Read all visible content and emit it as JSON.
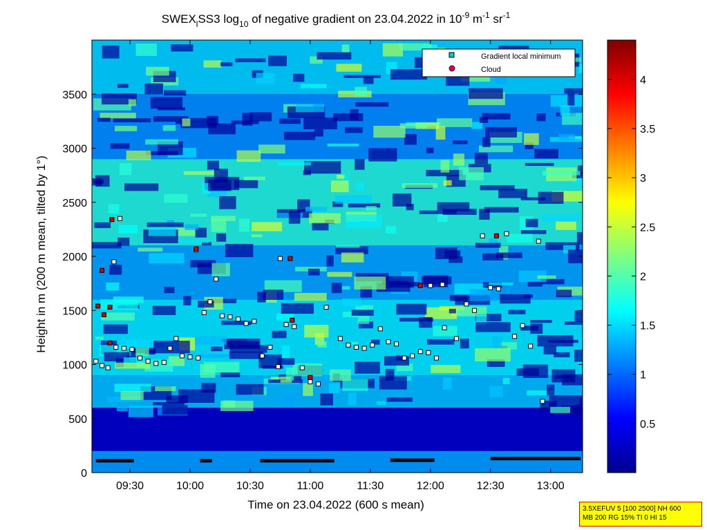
{
  "chart_data": {
    "type": "heatmap",
    "title_parts": {
      "prefix": "SWEX",
      "prefix_sub": "l",
      "name": "SS3 log",
      "log_base": "10",
      "mid": " of negative gradient on 23.04.2022 in 10",
      "exp1": "-9",
      "unit1": " m",
      "exp2": "-1",
      "unit2": " sr",
      "exp3": "-1"
    },
    "xlabel": "Time on 23.04.2022 (600 s mean)",
    "ylabel": "Height in m (200 m mean, tilted by 1°)",
    "x_ticks": [
      "09:30",
      "10:00",
      "10:30",
      "11:00",
      "11:30",
      "12:00",
      "12:30",
      "13:00"
    ],
    "x_tick_minutes": [
      570,
      600,
      630,
      660,
      690,
      720,
      750,
      780
    ],
    "xlim_minutes": [
      551,
      796
    ],
    "y_ticks": [
      0,
      500,
      1000,
      1500,
      2000,
      2500,
      3000,
      3500
    ],
    "ylim": [
      0,
      4000
    ],
    "colorbar": {
      "colormap": "jet",
      "range": [
        0,
        4.4
      ],
      "ticks": [
        "0.5",
        "1",
        "1.5",
        "2",
        "2.5",
        "3",
        "3.5",
        "4"
      ],
      "tick_values": [
        0.5,
        1,
        1.5,
        2,
        2.5,
        3,
        3.5,
        4
      ]
    },
    "legend": {
      "placement": "top-right",
      "entries": [
        {
          "label": "Gradient local minimum",
          "color": "#00cccc",
          "marker": "square"
        },
        {
          "label": "Cloud",
          "color": "#ff0000",
          "marker": "circle"
        }
      ]
    },
    "band_values": [
      {
        "y0": 0,
        "y1": 200,
        "v": 0.2
      },
      {
        "y0": 200,
        "y1": 600,
        "v": 0.3
      },
      {
        "y0": 600,
        "y1": 900,
        "v": 1.4
      },
      {
        "y0": 900,
        "y1": 1600,
        "v": 1.6
      },
      {
        "y0": 1600,
        "y1": 2100,
        "v": 1.3
      },
      {
        "y0": 2100,
        "y1": 2900,
        "v": 1.8
      },
      {
        "y0": 2900,
        "y1": 3500,
        "v": 1.2
      },
      {
        "y0": 3500,
        "y1": 4000,
        "v": 1.5
      }
    ],
    "gradient_minima": [
      {
        "t": 553,
        "h": 1030
      },
      {
        "t": 556,
        "h": 990
      },
      {
        "t": 559,
        "h": 970
      },
      {
        "t": 563,
        "h": 1160
      },
      {
        "t": 567,
        "h": 1150
      },
      {
        "t": 571,
        "h": 1140
      },
      {
        "t": 575,
        "h": 1060
      },
      {
        "t": 579,
        "h": 1030
      },
      {
        "t": 583,
        "h": 1010
      },
      {
        "t": 587,
        "h": 1020
      },
      {
        "t": 590,
        "h": 1150
      },
      {
        "t": 593,
        "h": 1240
      },
      {
        "t": 596,
        "h": 1080
      },
      {
        "t": 600,
        "h": 1070
      },
      {
        "t": 604,
        "h": 1060
      },
      {
        "t": 607,
        "h": 1480
      },
      {
        "t": 610,
        "h": 1580
      },
      {
        "t": 613,
        "h": 1790
      },
      {
        "t": 616,
        "h": 1450
      },
      {
        "t": 620,
        "h": 1440
      },
      {
        "t": 624,
        "h": 1420
      },
      {
        "t": 628,
        "h": 1380
      },
      {
        "t": 632,
        "h": 1400
      },
      {
        "t": 636,
        "h": 1080
      },
      {
        "t": 640,
        "h": 1160
      },
      {
        "t": 644,
        "h": 980
      },
      {
        "t": 648,
        "h": 1370
      },
      {
        "t": 652,
        "h": 1350
      },
      {
        "t": 656,
        "h": 970
      },
      {
        "t": 660,
        "h": 840
      },
      {
        "t": 664,
        "h": 820
      },
      {
        "t": 668,
        "h": 1530
      },
      {
        "t": 675,
        "h": 1240
      },
      {
        "t": 679,
        "h": 1180
      },
      {
        "t": 683,
        "h": 1160
      },
      {
        "t": 687,
        "h": 1150
      },
      {
        "t": 691,
        "h": 1180
      },
      {
        "t": 695,
        "h": 1330
      },
      {
        "t": 699,
        "h": 1210
      },
      {
        "t": 703,
        "h": 1190
      },
      {
        "t": 707,
        "h": 1060
      },
      {
        "t": 711,
        "h": 1080
      },
      {
        "t": 715,
        "h": 1120
      },
      {
        "t": 719,
        "h": 1110
      },
      {
        "t": 723,
        "h": 1060
      },
      {
        "t": 727,
        "h": 1340
      },
      {
        "t": 733,
        "h": 1240
      },
      {
        "t": 738,
        "h": 1560
      },
      {
        "t": 742,
        "h": 1500
      },
      {
        "t": 746,
        "h": 2190
      },
      {
        "t": 750,
        "h": 1710
      },
      {
        "t": 754,
        "h": 1700
      },
      {
        "t": 758,
        "h": 2210
      },
      {
        "t": 762,
        "h": 1260
      },
      {
        "t": 766,
        "h": 1360
      },
      {
        "t": 770,
        "h": 1170
      },
      {
        "t": 774,
        "h": 2140
      },
      {
        "t": 776,
        "h": 660
      },
      {
        "t": 562,
        "h": 1950
      },
      {
        "t": 565,
        "h": 2350
      },
      {
        "t": 603,
        "h": 2060
      },
      {
        "t": 645,
        "h": 1980
      },
      {
        "t": 720,
        "h": 1730
      },
      {
        "t": 726,
        "h": 1740
      }
    ],
    "clouds": [
      {
        "t": 554,
        "h": 1540
      },
      {
        "t": 557,
        "h": 1460
      },
      {
        "t": 560,
        "h": 1530
      },
      {
        "t": 560,
        "h": 1200
      },
      {
        "t": 561,
        "h": 2340
      },
      {
        "t": 556,
        "h": 1870
      },
      {
        "t": 603,
        "h": 2070
      },
      {
        "t": 650,
        "h": 1980
      },
      {
        "t": 651,
        "h": 1410
      },
      {
        "t": 660,
        "h": 880
      },
      {
        "t": 715,
        "h": 1730
      },
      {
        "t": 753,
        "h": 2190
      }
    ],
    "ground_segments": [
      {
        "t0": 553,
        "t1": 572,
        "h": 110
      },
      {
        "t0": 605,
        "t1": 611,
        "h": 110
      },
      {
        "t0": 635,
        "t1": 672,
        "h": 110
      },
      {
        "t0": 700,
        "t1": 722,
        "h": 115
      },
      {
        "t0": 750,
        "t1": 795,
        "h": 130
      }
    ]
  },
  "infobox": {
    "line1": "3.5XEFUV 5 [100 2500] NH 600",
    "line2": "MB 200 RG 15% TI 0 HI 15"
  }
}
